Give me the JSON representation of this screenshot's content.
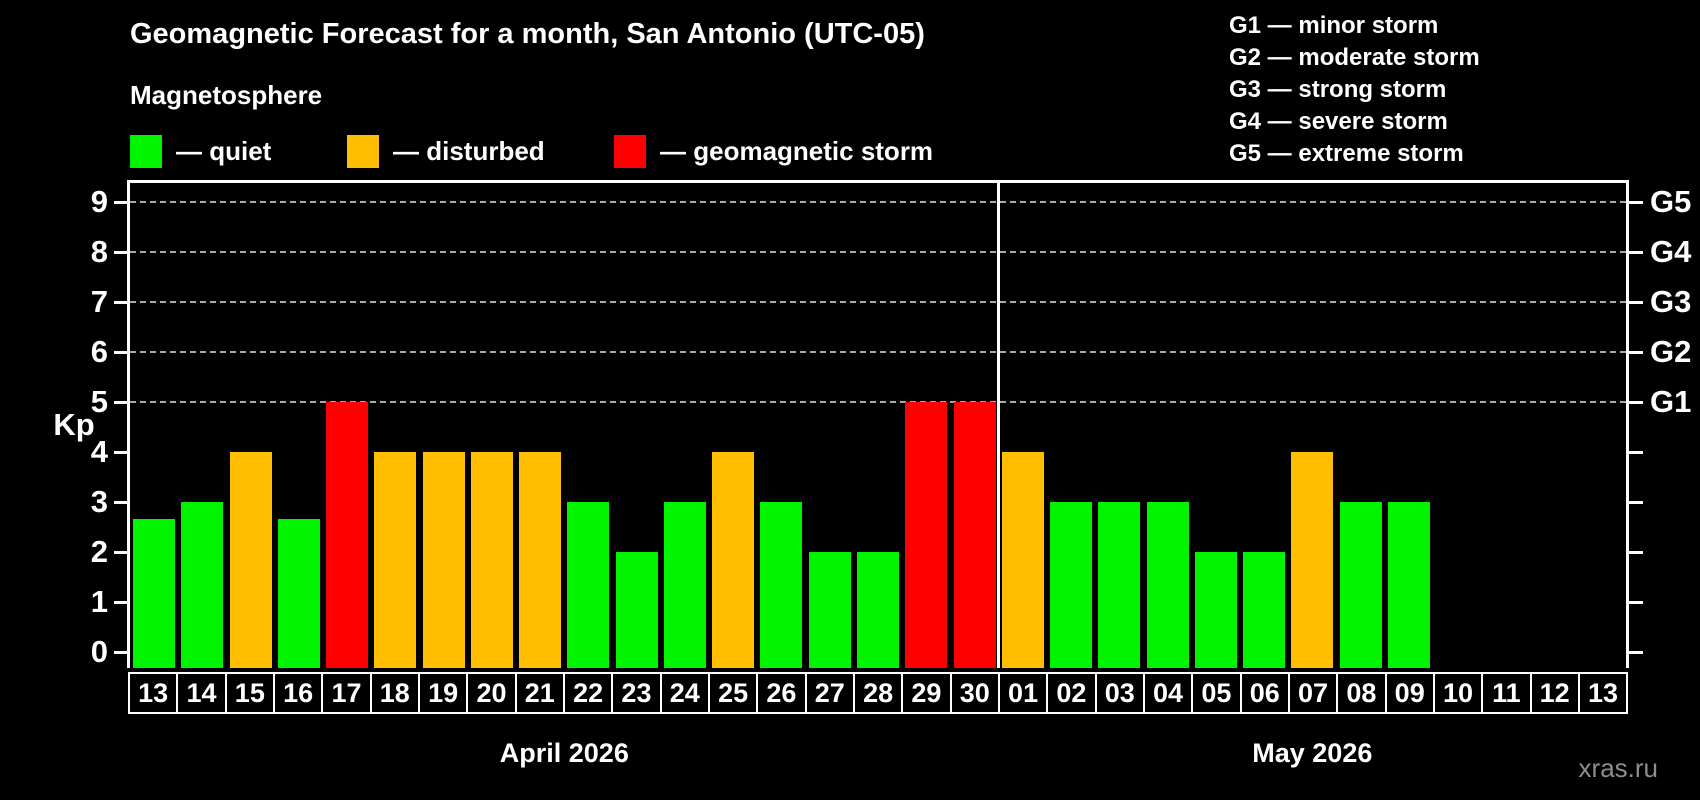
{
  "title": "Geomagnetic Forecast for a month, San Antonio (UTC-05)",
  "subtitle": "Magnetosphere",
  "legend": {
    "items": [
      {
        "status": "quiet",
        "label": "— quiet",
        "color": "#00f400"
      },
      {
        "status": "disturbed",
        "label": "— disturbed",
        "color": "#ffbf00"
      },
      {
        "status": "storm",
        "label": "— geomagnetic storm",
        "color": "#ff0000"
      }
    ]
  },
  "g_legend": [
    "G1 — minor storm",
    "G2 — moderate storm",
    "G3 — strong storm",
    "G4 — severe storm",
    "G5 — extreme storm"
  ],
  "axis": {
    "kp_label": "Kp"
  },
  "watermark": "xras.ru",
  "chart_data": {
    "type": "bar",
    "title": "Geomagnetic Forecast for a month, San Antonio (UTC-05)",
    "xlabel": "",
    "ylabel": "Kp",
    "ylim": [
      0,
      9.4
    ],
    "y_ticks": [
      0,
      1,
      2,
      3,
      4,
      5,
      6,
      7,
      8,
      9
    ],
    "gridlines_at": [
      5,
      6,
      7,
      8,
      9
    ],
    "grid": "dashed horizontal at Kp 5-9 only",
    "right_axis": [
      {
        "kp": 5,
        "label": "G1"
      },
      {
        "kp": 6,
        "label": "G2"
      },
      {
        "kp": 7,
        "label": "G3"
      },
      {
        "kp": 8,
        "label": "G4"
      },
      {
        "kp": 9,
        "label": "G5"
      }
    ],
    "status_colors": {
      "quiet": "#00f400",
      "disturbed": "#ffbf00",
      "storm": "#ff0000"
    },
    "months": [
      {
        "label": "April 2026",
        "days": [
          {
            "day": "13",
            "kp": 2.67,
            "status": "quiet"
          },
          {
            "day": "14",
            "kp": 3,
            "status": "quiet"
          },
          {
            "day": "15",
            "kp": 4,
            "status": "disturbed"
          },
          {
            "day": "16",
            "kp": 2.67,
            "status": "quiet"
          },
          {
            "day": "17",
            "kp": 5,
            "status": "storm"
          },
          {
            "day": "18",
            "kp": 4,
            "status": "disturbed"
          },
          {
            "day": "19",
            "kp": 4,
            "status": "disturbed"
          },
          {
            "day": "20",
            "kp": 4,
            "status": "disturbed"
          },
          {
            "day": "21",
            "kp": 4,
            "status": "disturbed"
          },
          {
            "day": "22",
            "kp": 3,
            "status": "quiet"
          },
          {
            "day": "23",
            "kp": 2,
            "status": "quiet"
          },
          {
            "day": "24",
            "kp": 3,
            "status": "quiet"
          },
          {
            "day": "25",
            "kp": 4,
            "status": "disturbed"
          },
          {
            "day": "26",
            "kp": 3,
            "status": "quiet"
          },
          {
            "day": "27",
            "kp": 2,
            "status": "quiet"
          },
          {
            "day": "28",
            "kp": 2,
            "status": "quiet"
          },
          {
            "day": "29",
            "kp": 5,
            "status": "storm"
          },
          {
            "day": "30",
            "kp": 5,
            "status": "storm"
          }
        ]
      },
      {
        "label": "May 2026",
        "days": [
          {
            "day": "01",
            "kp": 4,
            "status": "disturbed"
          },
          {
            "day": "02",
            "kp": 3,
            "status": "quiet"
          },
          {
            "day": "03",
            "kp": 3,
            "status": "quiet"
          },
          {
            "day": "04",
            "kp": 3,
            "status": "quiet"
          },
          {
            "day": "05",
            "kp": 2,
            "status": "quiet"
          },
          {
            "day": "06",
            "kp": 2,
            "status": "quiet"
          },
          {
            "day": "07",
            "kp": 4,
            "status": "disturbed"
          },
          {
            "day": "08",
            "kp": 3,
            "status": "quiet"
          },
          {
            "day": "09",
            "kp": 3,
            "status": "quiet"
          },
          {
            "day": "10",
            "kp": null,
            "status": null
          },
          {
            "day": "11",
            "kp": null,
            "status": null
          },
          {
            "day": "12",
            "kp": null,
            "status": null
          },
          {
            "day": "13",
            "kp": null,
            "status": null
          }
        ]
      }
    ]
  }
}
